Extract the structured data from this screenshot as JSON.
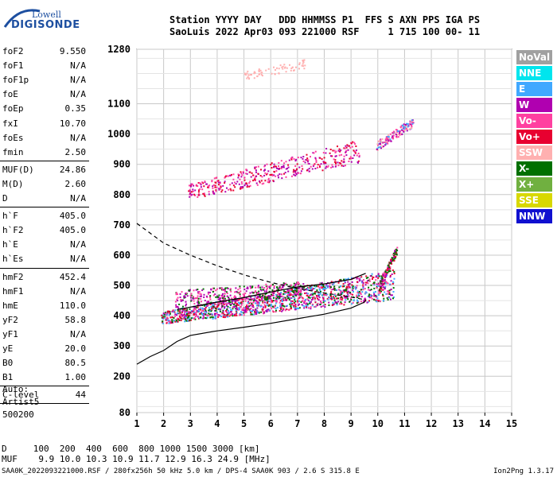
{
  "logo": {
    "line1": "Lowell",
    "line2": "DIGISONDE"
  },
  "header": {
    "line1": "Station YYYY DAY   DDD HHMMSS P1  FFS S AXN PPS IGA PS",
    "line2": "SaoLuis 2022 Apr03 093 221000 RSF     1 715 100 00- 11"
  },
  "params": [
    {
      "k": "foF2",
      "v": "9.550"
    },
    {
      "k": "foF1",
      "v": "N/A"
    },
    {
      "k": "foF1p",
      "v": "N/A"
    },
    {
      "k": "foE",
      "v": "N/A"
    },
    {
      "k": "foEp",
      "v": "0.35"
    },
    {
      "k": "fxI",
      "v": "10.70"
    },
    {
      "k": "foEs",
      "v": "N/A"
    },
    {
      "k": "fmin",
      "v": "2.50"
    },
    {
      "k": "MUF(D)",
      "v": "24.86"
    },
    {
      "k": "M(D)",
      "v": "2.60"
    },
    {
      "k": "D",
      "v": "N/A"
    },
    {
      "k": "h`F",
      "v": "405.0"
    },
    {
      "k": "h`F2",
      "v": "405.0"
    },
    {
      "k": "h`E",
      "v": "N/A"
    },
    {
      "k": "h`Es",
      "v": "N/A"
    },
    {
      "k": "hmF2",
      "v": "452.4"
    },
    {
      "k": "hmF1",
      "v": "N/A"
    },
    {
      "k": "hmE",
      "v": "110.0"
    },
    {
      "k": "yF2",
      "v": "58.8"
    },
    {
      "k": "yF1",
      "v": "N/A"
    },
    {
      "k": "yE",
      "v": "20.0"
    },
    {
      "k": "B0",
      "v": "80.5"
    },
    {
      "k": "B1",
      "v": "1.00"
    },
    {
      "k": "C-level",
      "v": "44"
    }
  ],
  "auto": {
    "l1": "Auto:",
    "l2": "Artist5",
    "l3": "500200"
  },
  "legend": [
    {
      "label": "NoVal",
      "color": "#a0a0a0"
    },
    {
      "label": "NNE",
      "color": "#00e5ee"
    },
    {
      "label": "E",
      "color": "#40a8ff"
    },
    {
      "label": "W",
      "color": "#b000b0"
    },
    {
      "label": "Vo-",
      "color": "#ff40a0"
    },
    {
      "label": "Vo+",
      "color": "#e80030"
    },
    {
      "label": "SSW",
      "color": "#ffb0b0"
    },
    {
      "label": "X-",
      "color": "#007000"
    },
    {
      "label": "X+",
      "color": "#70b040"
    },
    {
      "label": "SSE",
      "color": "#d8d800"
    },
    {
      "label": "NNW",
      "color": "#1010d0"
    }
  ],
  "footer": {
    "d_line": "D     100  200  400  600  800 1000 1500 3000 [km]",
    "muf_line": "MUF    9.9 10.0 10.3 10.9 11.7 12.9 16.3 24.9 [MHz]",
    "file_line": "SAA0K_2022093221000.RSF / 280fx256h 50 kHz 5.0 km / DPS-4 SAA0K 903 / 2.6 S 315.8 E",
    "version": "Ion2Png 1.3.17"
  },
  "chart_data": {
    "type": "scatter",
    "xlim": [
      1,
      15
    ],
    "ylim": [
      80,
      1280
    ],
    "x_ticks": [
      1,
      2,
      3,
      4,
      5,
      6,
      7,
      8,
      9,
      10,
      11,
      12,
      13,
      14,
      15
    ],
    "y_ticks": [
      80,
      200,
      300,
      400,
      500,
      600,
      700,
      800,
      900,
      1000,
      1100,
      1280
    ],
    "grid": true,
    "clusters": [
      {
        "name": "F-trace",
        "color_mix": [
          "#ff40a0",
          "#e80030",
          "#b000b0",
          "#007000",
          "#40a8ff"
        ],
        "x_range": [
          1.9,
          10.6
        ],
        "y_from": [
          390,
          400
        ],
        "y_to": [
          470,
          540
        ],
        "count": 1400
      },
      {
        "name": "F-trace-upper",
        "color_mix": [
          "#b000b0",
          "#ff40a0",
          "#007000"
        ],
        "x_range": [
          2.4,
          7.2
        ],
        "y_from": [
          440,
          470
        ],
        "y_to": [
          480,
          500
        ],
        "count": 400
      },
      {
        "name": "2F-trace",
        "color_mix": [
          "#b000b0",
          "#ff40a0",
          "#e80030"
        ],
        "x_range": [
          2.9,
          9.3
        ],
        "y_from": [
          800,
          820
        ],
        "y_to": [
          920,
          970
        ],
        "count": 420
      },
      {
        "name": "upper-cluster",
        "color_mix": [
          "#ffb0b0",
          "#ff40a0",
          "#b000b0",
          "#40a8ff"
        ],
        "x_range": [
          9.9,
          11.3
        ],
        "y_from": [
          960,
          960
        ],
        "y_to": [
          1040,
          1040
        ],
        "count": 160
      },
      {
        "name": "3F-trace",
        "color_mix": [
          "#ffb0b0"
        ],
        "x_range": [
          5.0,
          7.3
        ],
        "y_from": [
          1195,
          1195
        ],
        "y_to": [
          1235,
          1235
        ],
        "count": 70
      },
      {
        "name": "tail",
        "color_mix": [
          "#b000b0",
          "#ff40a0",
          "#e80030",
          "#007000"
        ],
        "x_range": [
          10.0,
          10.7
        ],
        "y_from": [
          490,
          490
        ],
        "y_to": [
          620,
          620
        ],
        "count": 120
      }
    ],
    "profile_curve": [
      [
        1.0,
        240
      ],
      [
        1.5,
        265
      ],
      [
        2.0,
        285
      ],
      [
        2.5,
        315
      ],
      [
        3.0,
        335
      ],
      [
        4.0,
        350
      ],
      [
        5.0,
        362
      ],
      [
        6.0,
        375
      ],
      [
        7.0,
        390
      ],
      [
        8.0,
        405
      ],
      [
        9.0,
        425
      ],
      [
        9.5,
        445
      ],
      [
        9.55,
        452
      ]
    ],
    "extrapolated_curve": [
      [
        1.0,
        705
      ],
      [
        2.0,
        640
      ],
      [
        3.0,
        600
      ],
      [
        4.0,
        565
      ],
      [
        5.0,
        535
      ],
      [
        6.0,
        510
      ],
      [
        7.0,
        490
      ],
      [
        8.0,
        475
      ],
      [
        9.0,
        462
      ],
      [
        9.55,
        452
      ]
    ],
    "trace_line": [
      [
        2.5,
        420
      ],
      [
        4.0,
        445
      ],
      [
        5.0,
        460
      ],
      [
        6.0,
        478
      ],
      [
        7.0,
        495
      ],
      [
        8.0,
        505
      ],
      [
        9.0,
        520
      ],
      [
        9.55,
        540
      ]
    ]
  }
}
